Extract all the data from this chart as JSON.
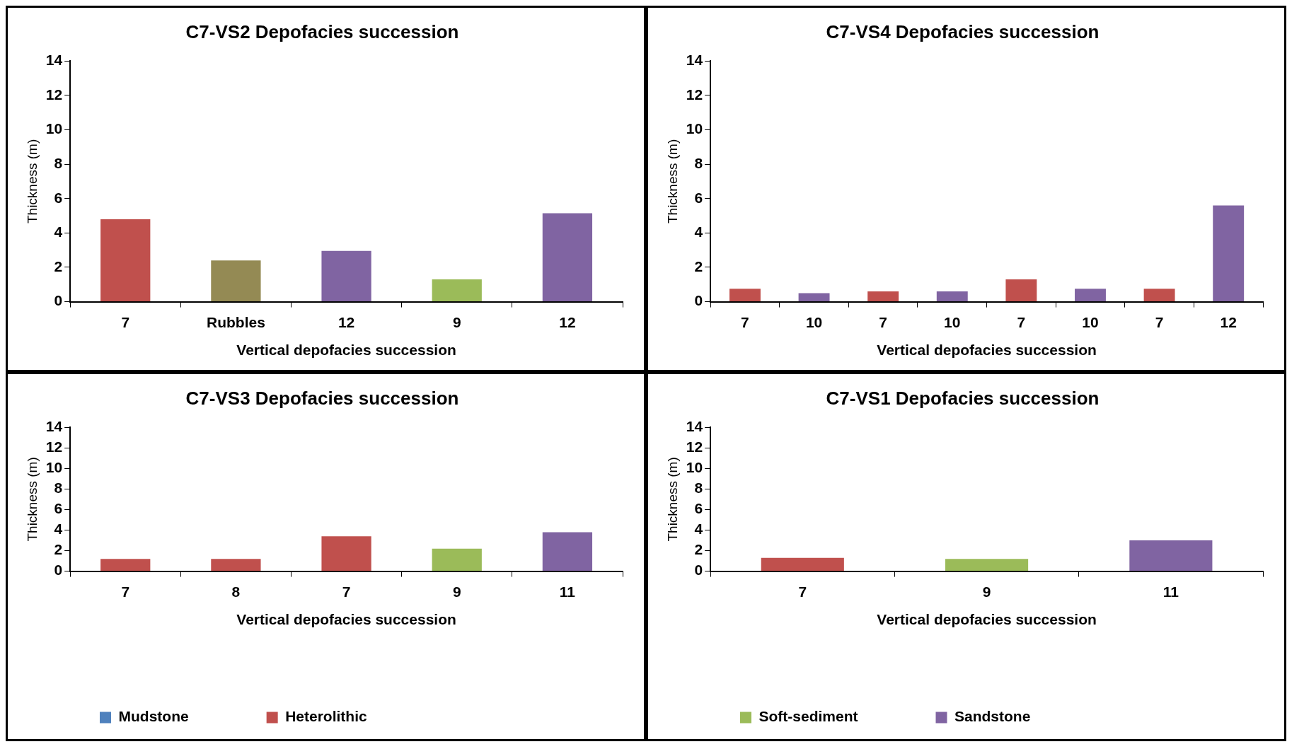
{
  "chart_data": [
    {
      "type": "bar",
      "title": "C7-VS2 Depofacies succession",
      "xlabel": "Vertical depofacies succession",
      "ylabel": "Thickness (m)",
      "categories": [
        "7",
        "Rubbles",
        "12",
        "9",
        "12"
      ],
      "values": [
        4.8,
        2.4,
        2.95,
        1.3,
        5.15
      ],
      "colors": [
        "#c0504d",
        "#948a54",
        "#8064a2",
        "#9bbb59",
        "#8064a2"
      ],
      "ylim": [
        0,
        14
      ],
      "yticks": [
        0,
        2,
        4,
        6,
        8,
        10,
        12,
        14
      ],
      "grid": false,
      "legend": false
    },
    {
      "type": "bar",
      "title": "C7-VS4 Depofacies succession",
      "xlabel": "Vertical depofacies succession",
      "ylabel": "Thickness (m)",
      "categories": [
        "7",
        "10",
        "7",
        "10",
        "7",
        "10",
        "7",
        "12"
      ],
      "values": [
        0.75,
        0.5,
        0.6,
        0.6,
        1.3,
        0.75,
        0.75,
        5.6
      ],
      "colors": [
        "#c0504d",
        "#8064a2",
        "#c0504d",
        "#8064a2",
        "#c0504d",
        "#8064a2",
        "#c0504d",
        "#8064a2"
      ],
      "ylim": [
        0,
        14
      ],
      "yticks": [
        0,
        2,
        4,
        6,
        8,
        10,
        12,
        14
      ],
      "grid": false,
      "legend": false
    },
    {
      "type": "bar",
      "title": "C7-VS3 Depofacies succession",
      "xlabel": "Vertical depofacies succession",
      "ylabel": "Thickness (m)",
      "categories": [
        "7",
        "8",
        "7",
        "9",
        "11"
      ],
      "series": [
        {
          "name": "Mudstone",
          "color": "#4f81bd",
          "values": [
            null,
            null,
            null,
            null,
            null
          ]
        },
        {
          "name": "Heterolithic",
          "color": "#c0504d",
          "values": [
            1.2,
            1.2,
            3.4,
            null,
            null
          ]
        },
        {
          "color": "#9bbb59",
          "values": [
            null,
            null,
            null,
            2.2,
            null
          ]
        },
        {
          "color": "#8064a2",
          "values": [
            null,
            null,
            null,
            null,
            3.8
          ]
        }
      ],
      "ylim": [
        0,
        14
      ],
      "yticks": [
        0,
        2,
        4,
        6,
        8,
        10,
        12,
        14
      ],
      "grid": false,
      "legend": "bottom"
    },
    {
      "type": "bar",
      "title": "C7-VS1 Depofacies succession",
      "xlabel": "Vertical depofacies succession",
      "ylabel": "Thickness (m)",
      "categories": [
        "7",
        "9",
        "11"
      ],
      "series": [
        {
          "color": "#c0504d",
          "values": [
            1.3,
            null,
            null
          ]
        },
        {
          "name": "Soft-sediment",
          "color": "#9bbb59",
          "values": [
            null,
            1.2,
            null
          ]
        },
        {
          "name": "Sandstone",
          "color": "#8064a2",
          "values": [
            null,
            null,
            3.0
          ]
        }
      ],
      "ylim": [
        0,
        14
      ],
      "yticks": [
        0,
        2,
        4,
        6,
        8,
        10,
        12,
        14
      ],
      "grid": false,
      "legend": "bottom"
    }
  ]
}
